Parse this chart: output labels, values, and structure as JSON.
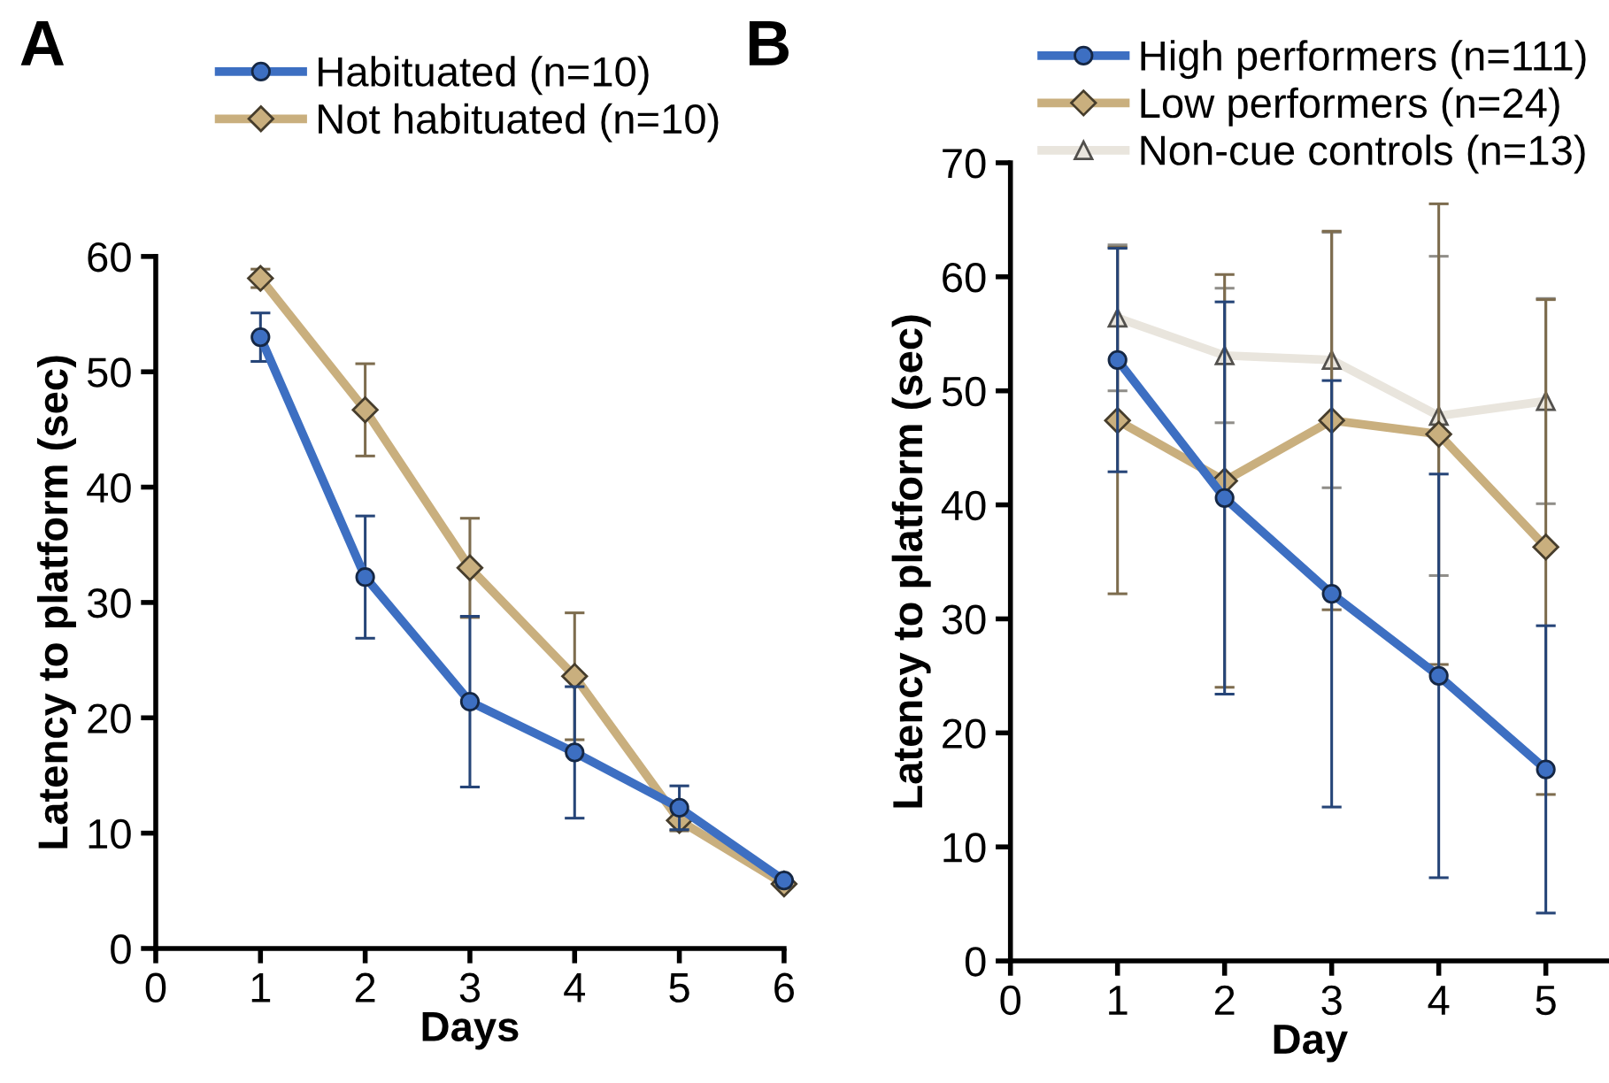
{
  "chart_data": [
    {
      "type": "line",
      "annotations": [
        "A"
      ],
      "xlabel": "Days",
      "ylabel": "Latency to platform (sec)",
      "x": [
        1,
        2,
        3,
        4,
        5,
        6
      ],
      "xlim": [
        0,
        6
      ],
      "xticks": [
        0,
        1,
        2,
        3,
        4,
        5,
        6
      ],
      "ylim": [
        0,
        60
      ],
      "yticks": [
        0,
        10,
        20,
        30,
        40,
        50,
        60
      ],
      "grid": false,
      "legend": "top",
      "series": [
        {
          "name": "Not habituated (n=10)",
          "color": "#c9af7e",
          "marker": "diamond",
          "values": [
            58.1,
            46.7,
            33.0,
            23.6,
            11.1,
            5.6
          ],
          "errors": [
            0.8,
            4.0,
            4.3,
            5.5,
            0.9,
            null
          ]
        },
        {
          "name": "Habituated (n=10)",
          "color": "#3d6fc2",
          "marker": "circle",
          "values": [
            53.0,
            32.2,
            21.4,
            17.0,
            12.2,
            5.9
          ],
          "errors": [
            2.1,
            5.3,
            7.4,
            5.7,
            1.9,
            null
          ]
        }
      ]
    },
    {
      "type": "line",
      "annotations": [
        "B"
      ],
      "xlabel": "Day",
      "ylabel": "Latency to platform (sec)",
      "x": [
        1,
        2,
        3,
        4,
        5
      ],
      "xlim": [
        0,
        5.59
      ],
      "xticks": [
        0,
        1,
        2,
        3,
        4,
        5
      ],
      "ylim": [
        0,
        70
      ],
      "yticks": [
        0,
        10,
        20,
        30,
        40,
        50,
        60,
        70
      ],
      "grid": false,
      "legend": "top right",
      "series": [
        {
          "name": "Non-cue controls (n=13)",
          "color": "#e9e5dd",
          "marker": "triangle",
          "values": [
            56.4,
            53.1,
            52.7,
            47.8,
            49.1
          ],
          "errors": [
            6.4,
            5.9,
            11.2,
            14.0,
            9.0
          ]
        },
        {
          "name": "Low performers (n=24)",
          "color": "#c9af7e",
          "marker": "diamond",
          "values": [
            47.4,
            42.1,
            47.4,
            46.2,
            36.3
          ],
          "errors": [
            15.2,
            18.1,
            16.6,
            20.2,
            21.7
          ]
        },
        {
          "name": "High performers (n=111)",
          "color": "#3d6fc2",
          "marker": "circle",
          "values": [
            52.7,
            40.6,
            32.2,
            25.0,
            16.8
          ],
          "errors": [
            9.8,
            17.2,
            18.7,
            17.7,
            12.6
          ]
        }
      ]
    }
  ]
}
